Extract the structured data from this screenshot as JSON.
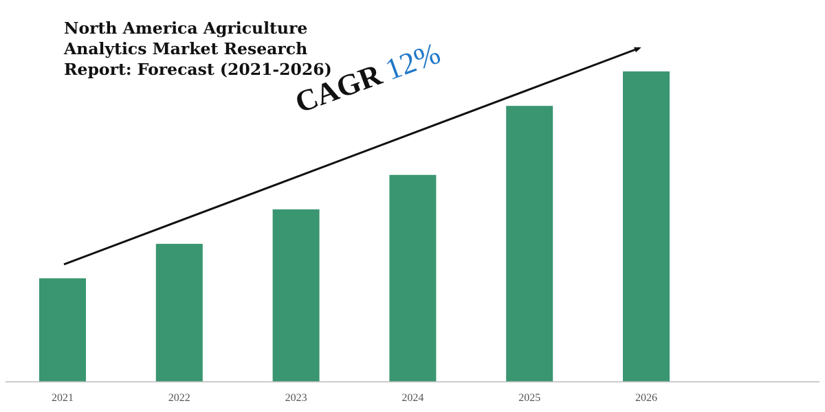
{
  "chart_data": {
    "type": "bar",
    "title_lines": [
      "North America Agriculture",
      "Analytics Market Research",
      "Report: Forecast (2021-2026)"
    ],
    "categories": [
      "2021",
      "2022",
      "2023",
      "2024",
      "2025",
      "2026"
    ],
    "values": [
      3,
      4,
      5,
      6,
      8,
      9
    ],
    "ylim": [
      0,
      9
    ],
    "xlabel": "",
    "ylabel": "",
    "annotation": {
      "label": "CAGR",
      "value": "12%"
    },
    "colors": {
      "bar": "#3a9670",
      "arrow": "#111111",
      "cagr_value": "#1f77c8",
      "axis": "#bbbbbb"
    }
  }
}
